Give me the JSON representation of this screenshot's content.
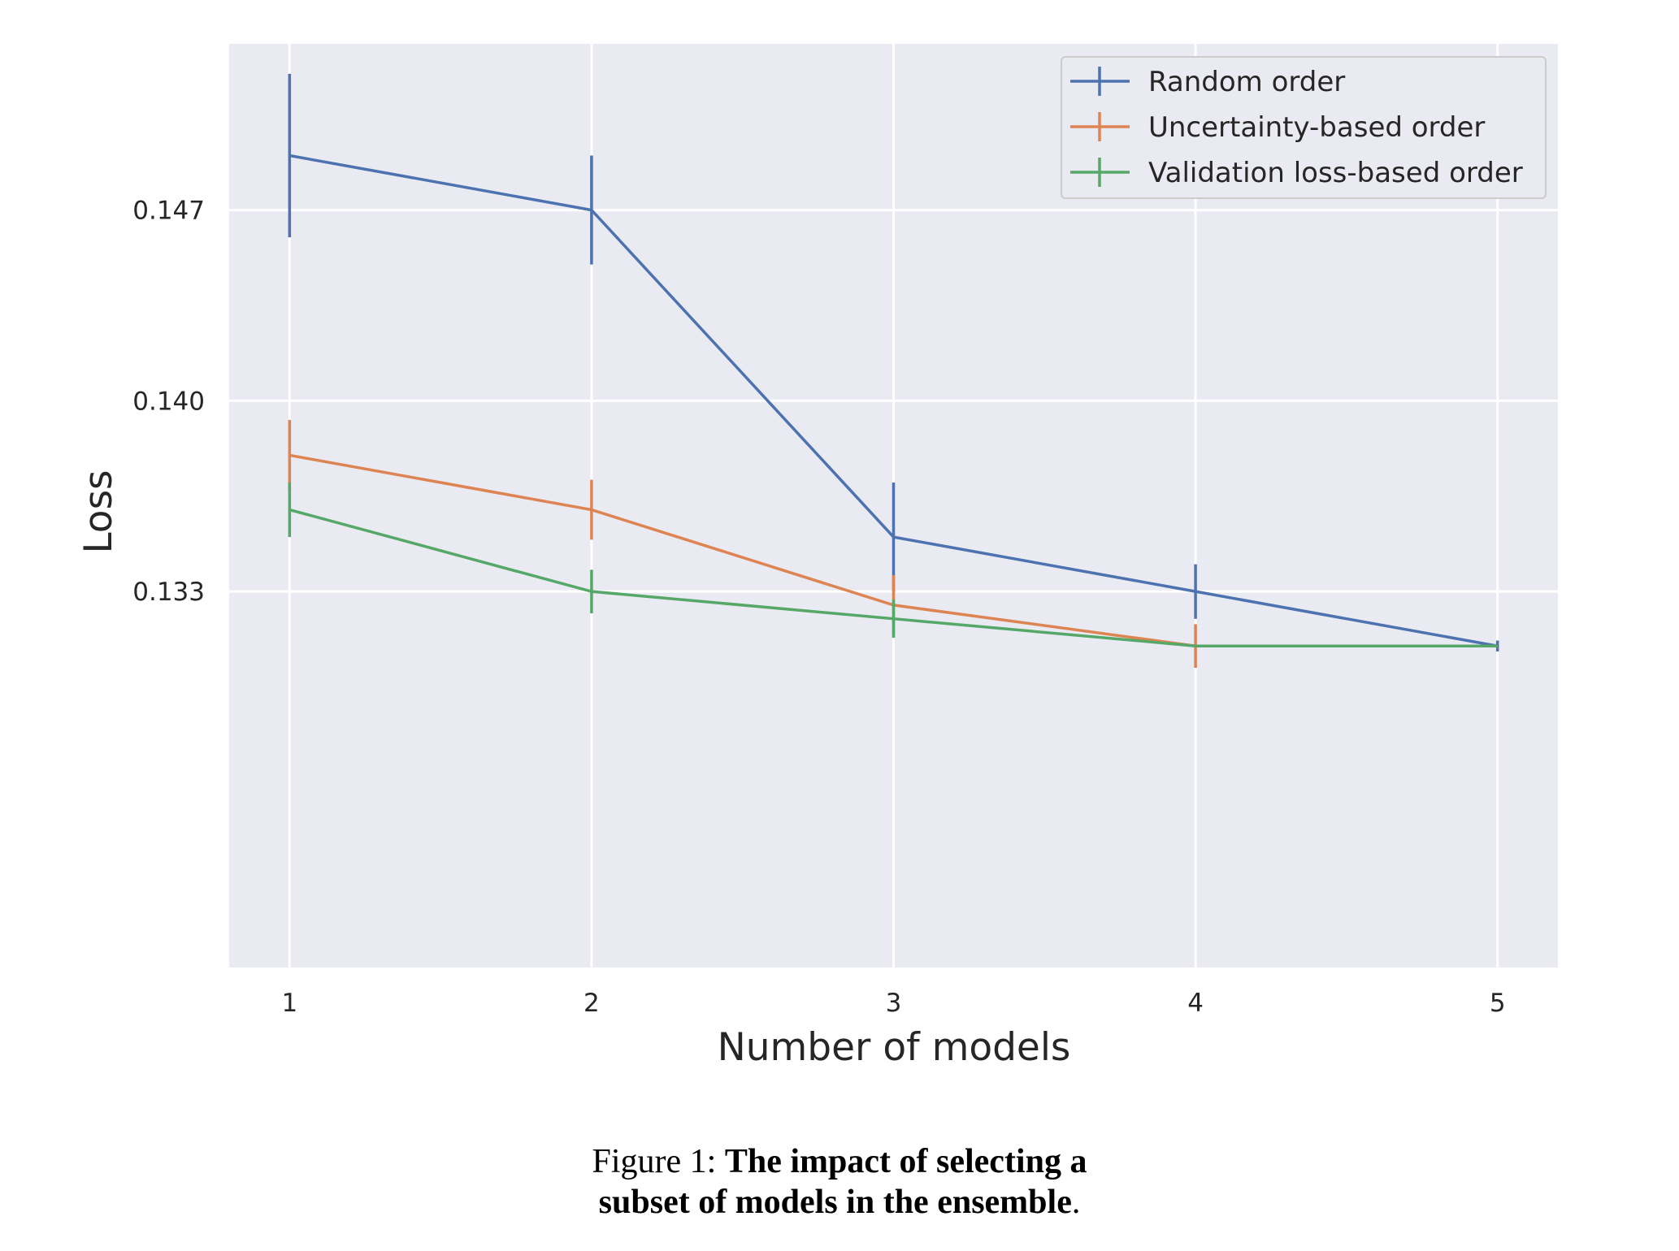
{
  "chart_data": {
    "type": "line",
    "title": "",
    "xlabel": "Number of models",
    "ylabel": "Loss",
    "x": [
      1,
      2,
      3,
      4,
      5
    ],
    "xticks": [
      "1",
      "2",
      "3",
      "4",
      "5"
    ],
    "yticks": [
      "0.133",
      "0.140",
      "0.147"
    ],
    "ytick_values": [
      0.133,
      0.14,
      0.147
    ],
    "xlim": [
      0.8,
      5.2
    ],
    "ylim": [
      0.1192,
      0.1531
    ],
    "grid": true,
    "legend_position": "top-right",
    "series": [
      {
        "name": "Random order",
        "color": "#4c72b0",
        "values": [
          0.149,
          0.147,
          0.135,
          0.133,
          0.131
        ],
        "err": [
          0.003,
          0.002,
          0.002,
          0.001,
          0.0002
        ]
      },
      {
        "name": "Uncertainty-based order",
        "color": "#dd8452",
        "values": [
          0.138,
          0.136,
          0.1325,
          0.131,
          0.131
        ],
        "err": [
          0.0013,
          0.0011,
          0.0011,
          0.0008,
          0.0
        ]
      },
      {
        "name": "Validation loss-based order",
        "color": "#55a868",
        "values": [
          0.136,
          0.133,
          0.132,
          0.131,
          0.131
        ],
        "err": [
          0.001,
          0.0008,
          0.0007,
          0.0,
          0.0
        ]
      }
    ]
  },
  "caption": {
    "prefix": "Figure 1: ",
    "bold_line1": "The impact of selecting a",
    "bold_line2": "subset of models in the ensemble",
    "suffix": "."
  }
}
